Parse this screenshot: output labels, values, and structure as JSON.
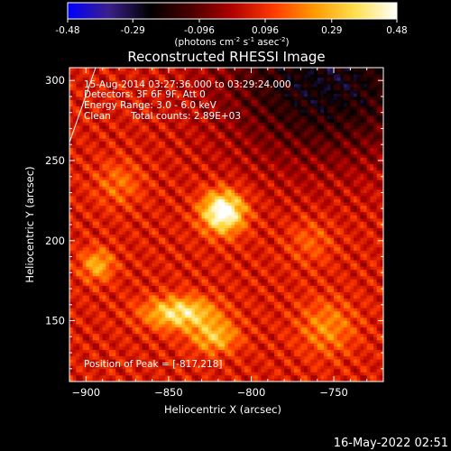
{
  "colorbar": {
    "tick_labels": [
      "-0.48",
      "-0.29",
      "-0.096",
      "0.096",
      "0.29",
      "0.48"
    ],
    "min": -0.48,
    "max": 0.48,
    "unit_parts": [
      "(photons cm",
      "-2",
      " s",
      "-1",
      " asec",
      "-2",
      ")"
    ],
    "colors": [
      "#0000ff",
      "#3b1f8a",
      "#000000",
      "#4a0000",
      "#b00000",
      "#ff3a00",
      "#ff9a00",
      "#ffe050",
      "#ffffff"
    ]
  },
  "chart_data": {
    "type": "heatmap",
    "title": "Reconstructed RHESSI Image",
    "xlabel": "Heliocentric X (arcsec)",
    "ylabel": "Heliocentric Y (arcsec)",
    "xlim": [
      -910,
      -720
    ],
    "ylim": [
      112,
      308
    ],
    "x_ticks": [
      -900,
      -850,
      -800,
      -750
    ],
    "y_ticks": [
      150,
      200,
      250,
      300
    ],
    "x_tick_labels": [
      "−900",
      "−850",
      "−800",
      "−750"
    ],
    "y_tick_labels": [
      "150",
      "200",
      "250",
      "300"
    ],
    "info_lines": [
      "15-Aug-2014 03:27:36.000 to 03:29:24.000",
      "Detectors: 3F 6F 9F, Att 0",
      "Energy Range: 3.0 - 6.0 keV"
    ],
    "clean_label": "Clean",
    "total_counts_label": "Total counts: 2.89E+03",
    "peak_label": "Position of Peak = [-817,218]",
    "peak": {
      "x": -817,
      "y": 218
    },
    "sources": [
      {
        "x": -817,
        "y": 218,
        "amp": 0.48,
        "sx": 9,
        "sy": 9
      },
      {
        "x": -843,
        "y": 155,
        "amp": 0.34,
        "sx": 15,
        "sy": 7
      },
      {
        "x": -822,
        "y": 140,
        "amp": 0.24,
        "sx": 10,
        "sy": 7
      },
      {
        "x": -893,
        "y": 185,
        "amp": 0.22,
        "sx": 7,
        "sy": 7
      },
      {
        "x": -754,
        "y": 146,
        "amp": 0.16,
        "sx": 12,
        "sy": 12
      },
      {
        "x": -880,
        "y": 236,
        "amp": 0.12,
        "sx": 10,
        "sy": 10
      },
      {
        "x": -764,
        "y": 200,
        "amp": 0.1,
        "sx": 10,
        "sy": 10
      }
    ],
    "negative_region": {
      "x": -755,
      "y": 300,
      "amp": -0.3,
      "sx": 45,
      "sy": 35
    },
    "background_level": 0.06,
    "ripple_amplitude": 0.07
  },
  "footer": {
    "date": "16-May-2022 02:51"
  }
}
